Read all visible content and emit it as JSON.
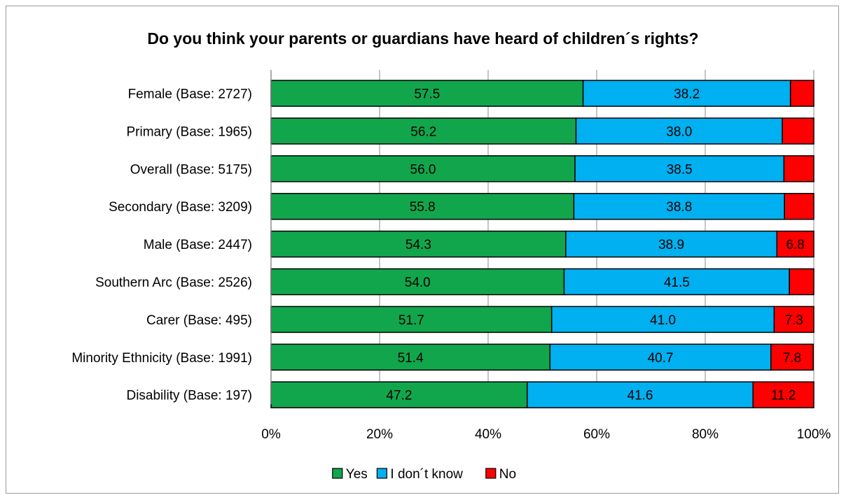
{
  "chart_data": {
    "type": "bar",
    "orientation": "horizontal",
    "stacked": true,
    "percent_stacked": true,
    "title": "Do you think your parents or guardians have heard of children´s rights?",
    "categories": [
      "Female (Base: 2727)",
      "Primary (Base: 1965)",
      "Overall (Base: 5175)",
      "Secondary (Base: 3209)",
      "Male (Base: 2447)",
      "Southern Arc (Base: 2526)",
      "Carer (Base: 495)",
      "Minority Ethnicity (Base: 1991)",
      "Disability (Base: 197)"
    ],
    "series": [
      {
        "name": "Yes",
        "color": "#12a64c",
        "values": [
          57.5,
          56.2,
          56.0,
          55.8,
          54.3,
          54.0,
          51.7,
          51.4,
          47.2
        ],
        "labels": [
          "57.5",
          "56.2",
          "56.0",
          "55.8",
          "54.3",
          "54.0",
          "51.7",
          "51.4",
          "47.2"
        ]
      },
      {
        "name": "I don´t know",
        "color": "#00b0f0",
        "values": [
          38.2,
          38.0,
          38.5,
          38.8,
          38.9,
          41.5,
          41.0,
          40.7,
          41.6
        ],
        "labels": [
          "38.2",
          "38.0",
          "38.5",
          "38.8",
          "38.9",
          "41.5",
          "41.0",
          "40.7",
          "41.6"
        ]
      },
      {
        "name": "No",
        "color": "#ff0000",
        "values": [
          4.3,
          5.8,
          5.5,
          5.4,
          6.8,
          4.5,
          7.3,
          7.8,
          11.2
        ],
        "labels": [
          "",
          "",
          "",
          "",
          "6.8",
          "",
          "7.3",
          "7.8",
          "11.2"
        ]
      }
    ],
    "x_ticks": [
      "0%",
      "20%",
      "40%",
      "60%",
      "80%",
      "100%"
    ],
    "xlim": [
      0,
      100
    ],
    "grid": true,
    "legend_position": "bottom"
  }
}
